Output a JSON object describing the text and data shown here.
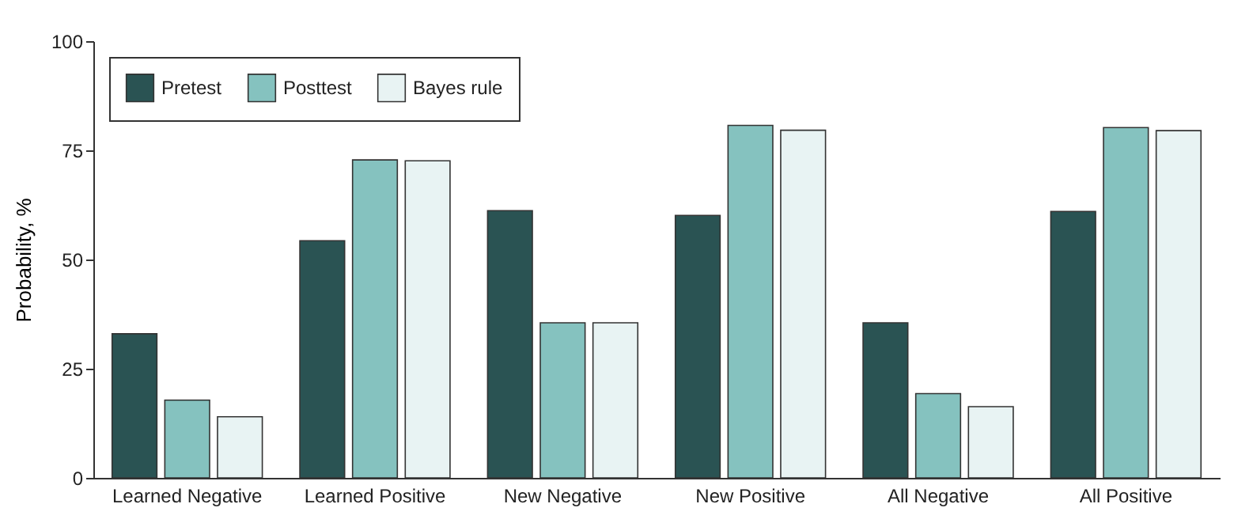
{
  "chart_data": {
    "type": "bar",
    "ylabel": "Probability, %",
    "categories": [
      "Learned Negative",
      "Learned Positive",
      "New Negative",
      "New Positive",
      "All Negative",
      "All Positive"
    ],
    "series": [
      {
        "name": "Pretest",
        "color": "#2a5353",
        "values": [
          33,
          54.3,
          61.2,
          60.1,
          35.5,
          61
        ]
      },
      {
        "name": "Posttest",
        "color": "#85c2bf",
        "values": [
          17.8,
          72.8,
          35.5,
          80.7,
          19.3,
          80.2
        ]
      },
      {
        "name": "Bayes rule",
        "color": "#e8f3f3",
        "values": [
          14,
          72.6,
          35.5,
          79.6,
          16.3,
          79.5
        ]
      }
    ],
    "ylim": [
      0,
      100
    ],
    "yticks": [
      0,
      25,
      50,
      75,
      100
    ],
    "grid": false,
    "legend": "top left"
  }
}
